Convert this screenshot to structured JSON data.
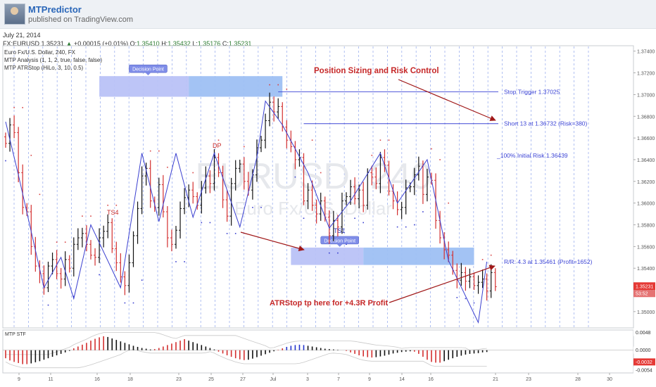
{
  "header": {
    "author": "MTPredictor",
    "published": "published on TradingView.com",
    "date": "July 21, 2014"
  },
  "ohlc_bar": {
    "symbol": "FX:EURUSD",
    "last": "1.35231",
    "change": "+0.00015 (+0.01%)",
    "o_label": "O:",
    "o": "1.35410",
    "h_label": "H:",
    "h": "1.35432",
    "l_label": "L:",
    "l": "1.35176",
    "c_label": "C:",
    "c": "1.35231"
  },
  "legend": {
    "line1": "Euro Fx/U.S. Dollar, 240, FX",
    "line2": "MTP Analysis (1, 1, 2, true, false, false)",
    "line3": "MTP ATRStop (HiLo, 3, 10, 0.5)"
  },
  "watermark": {
    "main": "EURUSD, 240",
    "sub": "Euro Fx/U.S. Dollar"
  },
  "colors": {
    "up": "#111111",
    "down": "#d32f2f",
    "blue": "#3a3fd0",
    "annotation": "#c62828",
    "zone": "#6a8ff0",
    "zone_label": "#7e8fe8"
  },
  "chart_data": {
    "type": "candlestick",
    "symbol": "EURUSD",
    "timeframe": "240",
    "ylim": [
      1.3485,
      1.3745
    ],
    "y_ticks": [
      "1.37400",
      "1.37200",
      "1.37000",
      "1.36800",
      "1.36600",
      "1.36400",
      "1.36200",
      "1.36000",
      "1.35800",
      "1.35600",
      "1.35400",
      "1.35200",
      "1.35000"
    ],
    "x_ticks": [
      "9",
      "11",
      "16",
      "18",
      "23",
      "25",
      "27",
      "Jul",
      "3",
      "7",
      "9",
      "14",
      "16",
      "21",
      "23",
      "28",
      "30"
    ],
    "price_label": "1.35231",
    "time_label": "53:52",
    "last_price": 1.35231,
    "close_path": [
      1.3655,
      1.3672,
      1.3665,
      1.3628,
      1.3596,
      1.3592,
      1.356,
      1.3542,
      1.3535,
      1.3522,
      1.3542,
      1.3548,
      1.3535,
      1.353,
      1.3548,
      1.354,
      1.3562,
      1.3568,
      1.3572,
      1.3562,
      1.3552,
      1.355,
      1.3568,
      1.3574,
      1.3582,
      1.3558,
      1.3545,
      1.3532,
      1.3524,
      1.3545,
      1.357,
      1.3595,
      1.3625,
      1.3632,
      1.3602,
      1.3596,
      1.3617,
      1.3592,
      1.3568,
      1.3562,
      1.3575,
      1.3595,
      1.3605,
      1.3612,
      1.3606,
      1.3598,
      1.3614,
      1.3625,
      1.3618,
      1.3642,
      1.3628,
      1.3603,
      1.3588,
      1.3618,
      1.3632,
      1.3636,
      1.362,
      1.3612,
      1.3626,
      1.3651,
      1.3658,
      1.3676,
      1.3693,
      1.3684,
      1.3689,
      1.367,
      1.3658,
      1.3652,
      1.364,
      1.3642,
      1.3602,
      1.3612,
      1.3598,
      1.359,
      1.3602,
      1.3587,
      1.357,
      1.3584,
      1.3578,
      1.3602,
      1.3606,
      1.3615,
      1.3604,
      1.3612,
      1.3598,
      1.3628,
      1.3624,
      1.3618,
      1.3642,
      1.3635,
      1.3611,
      1.3602,
      1.3594,
      1.3596,
      1.3614,
      1.3615,
      1.3626,
      1.3634,
      1.3608,
      1.3624,
      1.3621,
      1.3584,
      1.3568,
      1.3557,
      1.3552,
      1.3538,
      1.3529,
      1.3536,
      1.3528,
      1.3532,
      1.3524,
      1.3527,
      1.353,
      1.3519,
      1.3536,
      1.3523
    ],
    "zigzag": [
      {
        "i": 0,
        "p": 1.3675
      },
      {
        "i": 3,
        "p": 1.3626
      },
      {
        "i": 9,
        "p": 1.3522
      },
      {
        "i": 13,
        "p": 1.355
      },
      {
        "i": 16,
        "p": 1.3512
      },
      {
        "i": 20,
        "p": 1.358
      },
      {
        "i": 27,
        "p": 1.3522
      },
      {
        "i": 32,
        "p": 1.3646
      },
      {
        "i": 36,
        "p": 1.3583
      },
      {
        "i": 40,
        "p": 1.3646
      },
      {
        "i": 44,
        "p": 1.3587
      },
      {
        "i": 49,
        "p": 1.3646
      },
      {
        "i": 55,
        "p": 1.3578
      },
      {
        "i": 59,
        "p": 1.3642
      },
      {
        "i": 61,
        "p": 1.3694
      },
      {
        "i": 65,
        "p": 1.3672
      },
      {
        "i": 71,
        "p": 1.3628
      },
      {
        "i": 76,
        "p": 1.3577
      },
      {
        "i": 81,
        "p": 1.3602
      },
      {
        "i": 88,
        "p": 1.3646
      },
      {
        "i": 92,
        "p": 1.36
      },
      {
        "i": 99,
        "p": 1.364
      },
      {
        "i": 104,
        "p": 1.3547
      },
      {
        "i": 111,
        "p": 1.349
      },
      {
        "i": 113,
        "p": 1.3546
      }
    ],
    "hlines": [
      {
        "label": "Stop Trigger 1.37025",
        "price": 1.37025,
        "from_x": 1.3702,
        "from_i": 61
      },
      {
        "label": "Short 13 at 1.36732 (Risk=380)",
        "price": 1.36732,
        "from_i": 67
      },
      {
        "label": "_100% Initial Risk 1.36439",
        "price": 1.36439,
        "from_i": null
      },
      {
        "label": "R/R: 4.3 at 1.35461 (Profit=1652)",
        "price": 1.35461,
        "from_i": null
      }
    ],
    "zones": [
      {
        "from_i": 22,
        "to_i": 65,
        "top": 1.3717,
        "bottom": 1.3698,
        "split_i": 43,
        "label": "Decision Point"
      },
      {
        "from_i": 67,
        "to_i": 110,
        "top": 1.3559,
        "bottom": 1.3543,
        "split_i": 84,
        "label": "Decision Point"
      }
    ],
    "annotations": [
      {
        "text": "Position Sizing and Risk Control",
        "kind": "title"
      },
      {
        "text": "ATRStop tp here for +4.3R Profit",
        "kind": "callout"
      },
      {
        "text": "TS4",
        "kind": "label"
      },
      {
        "text": "DP",
        "kind": "label"
      },
      {
        "text": "TS1",
        "kind": "label"
      }
    ],
    "oscillator": {
      "title": "MTP STF",
      "ylim": [
        -0.0062,
        0.0055
      ],
      "ticks": [
        "0.0048",
        "0.0000",
        "-0.0032",
        "-0.0054"
      ],
      "values": [
        -0.0022,
        -0.0028,
        -0.0032,
        -0.0035,
        -0.0038,
        -0.0038,
        -0.0036,
        -0.0033,
        -0.003,
        -0.0026,
        -0.0022,
        -0.0018,
        -0.0014,
        -0.001,
        -0.0006,
        -0.0002,
        0.0005,
        0.001,
        0.0015,
        0.002,
        0.0026,
        0.0031,
        0.0035,
        0.0038,
        0.0036,
        0.0032,
        0.0028,
        0.0024,
        0.002,
        0.0016,
        0.0012,
        0.0009,
        0.0006,
        0.0004,
        0.0002,
        0.0003,
        0.0006,
        0.001,
        0.0014,
        0.0018,
        0.0022,
        0.0026,
        0.003,
        0.0026,
        0.0022,
        0.0018,
        0.0014,
        0.001,
        0.0006,
        0.0002,
        -0.0004,
        -0.0009,
        -0.0014,
        -0.0018,
        -0.0022,
        -0.0025,
        -0.0027,
        -0.0026,
        -0.0023,
        -0.0019,
        -0.0015,
        -0.0011,
        -0.0007,
        -0.0003,
        0.0001,
        0.0005,
        0.0009,
        0.0012,
        0.0014,
        0.0015,
        0.0014,
        0.0012,
        0.001,
        0.0008,
        0.0006,
        0.0004,
        0.0003,
        0.0002,
        0.0001,
        0.0,
        -0.0002,
        -0.0006,
        -0.001,
        -0.0014,
        -0.0017,
        -0.0019,
        -0.002,
        -0.0019,
        -0.0017,
        -0.0015,
        -0.0012,
        -0.0009,
        -0.0007,
        -0.0005,
        -0.0004,
        -0.0003,
        -0.0004,
        -0.001,
        -0.0018,
        -0.0026,
        -0.0032,
        -0.0034,
        -0.0034,
        -0.003,
        -0.0026,
        -0.0022,
        -0.0018,
        -0.0015,
        -0.0012,
        -0.001,
        -0.0009,
        -0.0008,
        -0.0006,
        -0.0005
      ]
    }
  }
}
